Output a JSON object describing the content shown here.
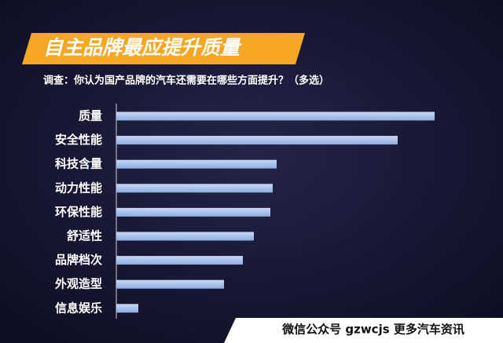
{
  "chart_data": {
    "type": "hbar",
    "title": "自主品牌最应提升质量",
    "subtitle": "调查：你认为国产品牌的汽车还需要在哪些方面提升？（多选）",
    "categories": [
      "质量",
      "安全性能",
      "科技含量",
      "动力性能",
      "环保性能",
      "舒适性",
      "品牌档次",
      "外观造型",
      "信息娱乐"
    ],
    "values": [
      405,
      358,
      204,
      199,
      196,
      175,
      161,
      137,
      28
    ],
    "color": "#a8c3ee",
    "xlim": [
      0,
      440
    ],
    "watermark": "微信公众号 gzwcjs 更多汽车资讯"
  }
}
